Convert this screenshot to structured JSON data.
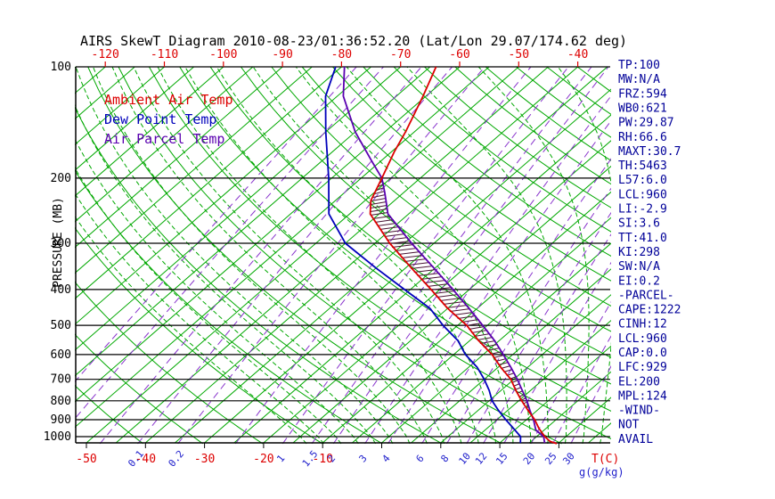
{
  "title": "AIRS SkewT Diagram 2010-08-23/01:36:52.20 (Lat/Lon 29.07/174.62 deg)",
  "colors": {
    "green": "#00a800",
    "purple": "#8833cc",
    "red": "#dd0000",
    "blue": "#2222cc",
    "navy": "#000099",
    "hatch": "#4a1535",
    "black": "#000000"
  },
  "legend": [
    {
      "label": "Ambient Air Temp",
      "color": "#dd0000"
    },
    {
      "label": "Dew Point Temp",
      "color": "#0000bb"
    },
    {
      "label": "Air Parcel Temp",
      "color": "#5a00b0"
    }
  ],
  "y_axis": {
    "label": "PRESSURE (MB)",
    "ticks": [
      100,
      200,
      300,
      400,
      500,
      600,
      700,
      800,
      900,
      1000
    ]
  },
  "top_axis": {
    "ticks": [
      -120,
      -110,
      -100,
      -90,
      -80,
      -70,
      -60,
      -50,
      -40
    ]
  },
  "bottom_axis": {
    "temp_ticks": [
      -50,
      -40,
      -30,
      -20,
      -10
    ],
    "temp_unit": "T(C)",
    "mix_ticks": [
      0.1,
      0.2,
      1,
      1.5,
      2,
      3,
      4,
      6,
      8,
      10,
      12,
      15,
      20,
      25,
      30
    ],
    "mix_unit": "g(g/kg)"
  },
  "stats": [
    "TP:100",
    "MW:N/A",
    "FRZ:594",
    "WB0:621",
    "PW:29.87",
    "RH:66.6",
    "MAXT:30.7",
    "TH:5463",
    "L57:6.0",
    "LCL:960",
    "LI:-2.9",
    "SI:3.6",
    "TT:41.0",
    "KI:298",
    "SW:N/A",
    "EI:0.2",
    "-PARCEL-",
    "CAPE:1222",
    "CINH:12",
    "LCL:960",
    "CAP:0.0",
    "LFC:929",
    "EL:200",
    "MPL:124",
    "-WIND-",
    "NOT",
    "AVAIL"
  ],
  "chart_data": {
    "type": "line",
    "title": "AIRS SkewT Diagram 2010-08-23/01:36:52.20 (Lat/Lon 29.07/174.62 deg)",
    "xlabel": "T(C)",
    "ylabel": "PRESSURE (MB)",
    "pressure_range": [
      100,
      1045
    ],
    "temp_range_at_surface": [
      -52,
      39
    ],
    "series": [
      {
        "name": "Ambient Air Temp",
        "color": "#dd0000",
        "points": [
          [
            100,
            -64
          ],
          [
            120,
            -60.5
          ],
          [
            150,
            -56.5
          ],
          [
            170,
            -54.5
          ],
          [
            200,
            -51.5
          ],
          [
            230,
            -49
          ],
          [
            250,
            -46.5
          ],
          [
            300,
            -37.5
          ],
          [
            350,
            -29
          ],
          [
            400,
            -21.5
          ],
          [
            450,
            -15
          ],
          [
            500,
            -8.5
          ],
          [
            550,
            -3.5
          ],
          [
            600,
            1.5
          ],
          [
            650,
            5.5
          ],
          [
            700,
            9.5
          ],
          [
            750,
            12.5
          ],
          [
            800,
            15.5
          ],
          [
            850,
            18.5
          ],
          [
            900,
            21.4
          ],
          [
            950,
            23.8
          ],
          [
            1000,
            26.4
          ],
          [
            1030,
            28.2
          ],
          [
            1045,
            29.8
          ]
        ]
      },
      {
        "name": "Dew Point Temp",
        "color": "#0000bb",
        "points": [
          [
            100,
            -81
          ],
          [
            120,
            -77
          ],
          [
            150,
            -70
          ],
          [
            200,
            -60.5
          ],
          [
            250,
            -53.5
          ],
          [
            300,
            -45
          ],
          [
            350,
            -35
          ],
          [
            400,
            -26
          ],
          [
            450,
            -18
          ],
          [
            500,
            -12.5
          ],
          [
            550,
            -7
          ],
          [
            600,
            -3
          ],
          [
            650,
            1.5
          ],
          [
            700,
            5
          ],
          [
            750,
            8
          ],
          [
            800,
            10.5
          ],
          [
            850,
            13.5
          ],
          [
            900,
            16.5
          ],
          [
            950,
            19.5
          ],
          [
            1000,
            22.3
          ],
          [
            1040,
            23.5
          ]
        ]
      },
      {
        "name": "Air Parcel Temp",
        "color": "#5a00b0",
        "points": [
          [
            100,
            -79.5
          ],
          [
            120,
            -74
          ],
          [
            150,
            -65
          ],
          [
            180,
            -56.5
          ],
          [
            200,
            -51.5
          ],
          [
            220,
            -48
          ],
          [
            250,
            -43.5
          ],
          [
            300,
            -33.8
          ],
          [
            350,
            -25.2
          ],
          [
            400,
            -17.8
          ],
          [
            450,
            -11.4
          ],
          [
            500,
            -5.8
          ],
          [
            550,
            -0.8
          ],
          [
            600,
            3.4
          ],
          [
            650,
            7.2
          ],
          [
            700,
            10.6
          ],
          [
            750,
            13.6
          ],
          [
            800,
            16.4
          ],
          [
            850,
            18.8
          ],
          [
            900,
            21.2
          ],
          [
            960,
            23.6
          ],
          [
            1000,
            26.2
          ],
          [
            1040,
            27.6
          ]
        ]
      }
    ],
    "background": {
      "isotherm_step": 5,
      "isotherm_range": [
        -125,
        40
      ],
      "dry_adiabats_K": {
        "from": 230,
        "to": 450,
        "step": 10
      },
      "moist_adiabats_C": {
        "from": -15,
        "to": 36,
        "step": 3
      },
      "mixing_ratio_lines": [
        0.01,
        0.02,
        0.05,
        0.1,
        0.2,
        0.5,
        1,
        1.5,
        2,
        3,
        4,
        6,
        8,
        10,
        12,
        15,
        20,
        25,
        30
      ]
    },
    "hatch": {
      "p_top": 204,
      "p_bottom": 935
    }
  }
}
